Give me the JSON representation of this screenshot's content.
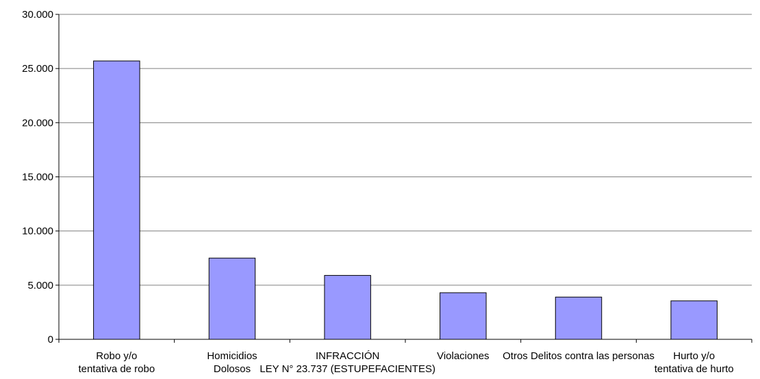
{
  "chart_data": {
    "type": "bar",
    "categories": [
      [
        "Robo y/o",
        "tentativa de robo"
      ],
      [
        "Homicidios",
        "Dolosos"
      ],
      [
        "INFRACCIÓN",
        "LEY N° 23.737 (ESTUPEFACIENTES)"
      ],
      [
        "Violaciones"
      ],
      [
        "Otros Delitos contra las personas"
      ],
      [
        "Hurto y/o",
        "tentativa de hurto"
      ]
    ],
    "values": [
      25700,
      7500,
      5900,
      4300,
      3900,
      3550
    ],
    "y_tick_labels": [
      "0",
      "5.000",
      "10.000",
      "15.000",
      "20.000",
      "25.000",
      "30.000"
    ],
    "ylim": [
      0,
      30000
    ],
    "y_step": 5000,
    "grid": true,
    "legend": "none",
    "title": "",
    "xlabel": "",
    "ylabel": "",
    "colors": {
      "bar_fill": "#9999ff",
      "bar_stroke": "#000000",
      "grid": "#808080",
      "axis": "#000000"
    }
  }
}
